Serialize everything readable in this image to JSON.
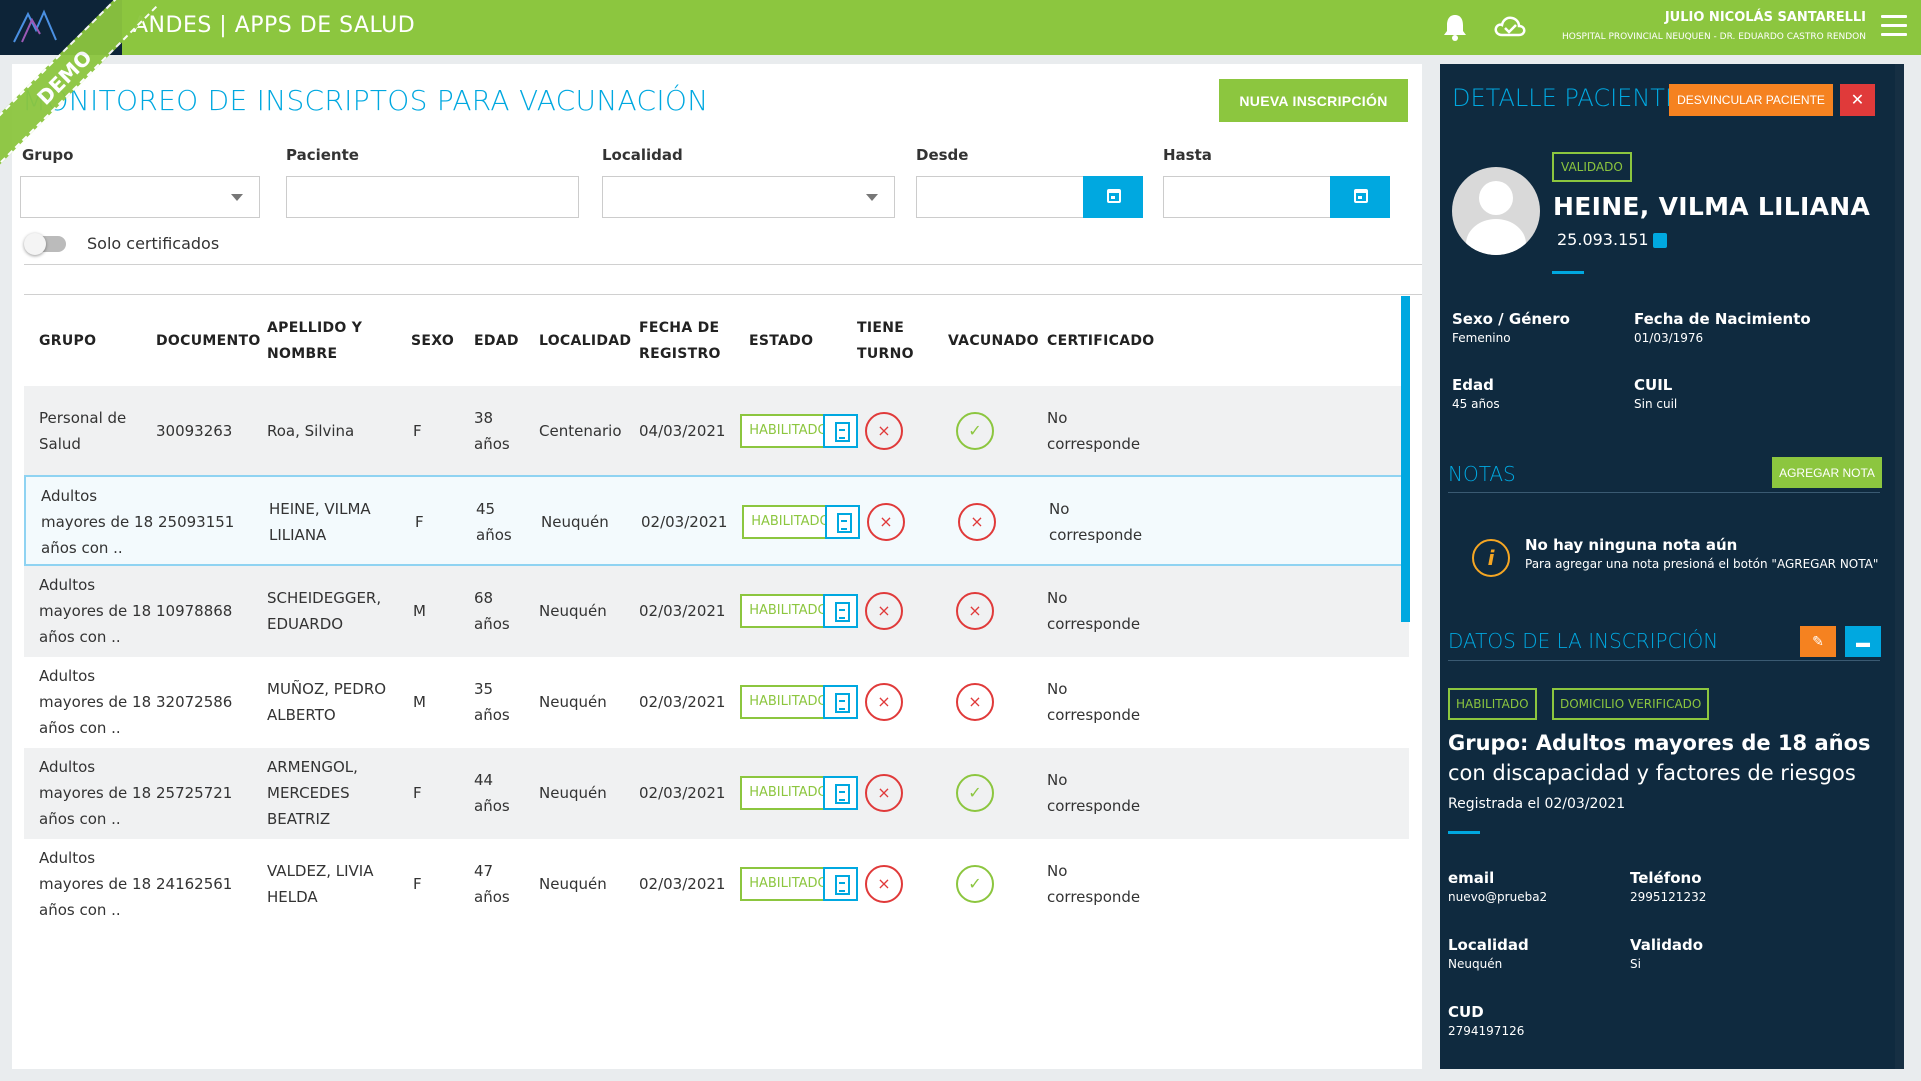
{
  "header": {
    "app_title": "ANDES | APPS DE SALUD",
    "user_name": "JULIO NICOLÁS SANTARELLI",
    "hospital": "HOSPITAL PROVINCIAL NEUQUEN - DR. EDUARDO CASTRO RENDON",
    "demo_label": "DEMO",
    "color_primary": "#8cc63f"
  },
  "main": {
    "title": "MONITOREO DE INSCRIPTOS PARA VACUNACIÓN",
    "new_button": "NUEVA INSCRIPCIÓN",
    "filters": {
      "grupo_label": "Grupo",
      "paciente_label": "Paciente",
      "localidad_label": "Localidad",
      "desde_label": "Desde",
      "hasta_label": "Hasta",
      "grupo_value": "",
      "paciente_value": "",
      "localidad_value": "",
      "desde_value": "",
      "hasta_value": ""
    },
    "toggle_label": "Solo certificados",
    "columns": {
      "grupo": "GRUPO",
      "documento": "DOCUMENTO",
      "apellido_1": "APELLIDO Y",
      "apellido_2": "NOMBRE",
      "sexo": "SEXO",
      "edad": "EDAD",
      "localidad": "LOCALIDAD",
      "fecha_1": "FECHA DE",
      "fecha_2": "REGISTRO",
      "estado": "ESTADO",
      "turno_1": "TIENE",
      "turno_2": "TURNO",
      "vacunado": "VACUNADO",
      "certificado": "CERTIFICADO"
    },
    "rows": [
      {
        "grupo": [
          "Personal de",
          "Salud"
        ],
        "documento": "30093263",
        "nombre": [
          "Roa, Silvina"
        ],
        "sexo": "F",
        "edad": [
          "38",
          "años"
        ],
        "localidad": "Centenario",
        "fecha": "04/03/2021",
        "estado": "HABILITADO",
        "turno": "×",
        "vacunado": "✓",
        "certificado": [
          "No",
          "corresponde"
        ]
      },
      {
        "grupo": [
          "Adultos",
          "mayores de 18",
          "años con .."
        ],
        "documento": "25093151",
        "nombre": [
          "HEINE, VILMA",
          "LILIANA"
        ],
        "sexo": "F",
        "edad": [
          "45",
          "años"
        ],
        "localidad": "Neuquén",
        "fecha": "02/03/2021",
        "estado": "HABILITADO",
        "turno": "×",
        "vacunado": "×",
        "certificado": [
          "No",
          "corresponde"
        ]
      },
      {
        "grupo": [
          "Adultos",
          "mayores de 18",
          "años con .."
        ],
        "documento": "10978868",
        "nombre": [
          "SCHEIDEGGER,",
          "EDUARDO"
        ],
        "sexo": "M",
        "edad": [
          "68",
          "años"
        ],
        "localidad": "Neuquén",
        "fecha": "02/03/2021",
        "estado": "HABILITADO",
        "turno": "×",
        "vacunado": "×",
        "certificado": [
          "No",
          "corresponde"
        ]
      },
      {
        "grupo": [
          "Adultos",
          "mayores de 18",
          "años con .."
        ],
        "documento": "32072586",
        "nombre": [
          "MUÑOZ, PEDRO",
          "ALBERTO"
        ],
        "sexo": "M",
        "edad": [
          "35",
          "años"
        ],
        "localidad": "Neuquén",
        "fecha": "02/03/2021",
        "estado": "HABILITADO",
        "turno": "×",
        "vacunado": "×",
        "certificado": [
          "No",
          "corresponde"
        ]
      },
      {
        "grupo": [
          "Adultos",
          "mayores de 18",
          "años con .."
        ],
        "documento": "25725721",
        "nombre": [
          "ARMENGOL,",
          "MERCEDES",
          "BEATRIZ"
        ],
        "sexo": "F",
        "edad": [
          "44",
          "años"
        ],
        "localidad": "Neuquén",
        "fecha": "02/03/2021",
        "estado": "HABILITADO",
        "turno": "×",
        "vacunado": "✓",
        "certificado": [
          "No",
          "corresponde"
        ]
      },
      {
        "grupo": [
          "Adultos",
          "mayores de 18",
          "años con .."
        ],
        "documento": "24162561",
        "nombre": [
          "VALDEZ, LIVIA",
          "HELDA"
        ],
        "sexo": "F",
        "edad": [
          "47",
          "años"
        ],
        "localidad": "Neuquén",
        "fecha": "02/03/2021",
        "estado": "HABILITADO",
        "turno": "×",
        "vacunado": "✓",
        "certificado": [
          "No",
          "corresponde"
        ]
      }
    ]
  },
  "detail": {
    "title": "DETALLE PACIENTE",
    "desvincular": "DESVINCULAR PACIENTE",
    "close": "✕",
    "validado": "VALIDADO",
    "name": "HEINE, VILMA LILIANA",
    "documento": "25.093.151",
    "sexo_label": "Sexo / Género",
    "sexo_value": "Femenino",
    "nac_label": "Fecha de Nacimiento",
    "nac_value": "01/03/1976",
    "edad_label": "Edad",
    "edad_value": "45 años",
    "cuil_label": "CUIL",
    "cuil_value": "Sin cuil",
    "notas_title": "NOTAS",
    "agregar_nota": "AGREGAR NOTA",
    "no_nota": "No hay ninguna nota aún",
    "no_nota_sub": "Para agregar una nota presioná el botón \"AGREGAR NOTA\"",
    "inscripcion_title": "DATOS DE LA INSCRIPCIÓN",
    "tag1": "HABILITADO",
    "tag2": "DOMICILIO VERIFICADO",
    "grupo_title": "Grupo: Adultos mayores de 18 años",
    "grupo_sub": "con discapacidad y factores de riesgos",
    "registrada": "Registrada el 02/03/2021",
    "email_label": "email",
    "email_value": "nuevo@prueba2",
    "tel_label": "Teléfono",
    "tel_value": "2995121232",
    "loc_label": "Localidad",
    "loc_value": "Neuquén",
    "val_label": "Validado",
    "val_value": "Si",
    "cud_label": "CUD",
    "cud_value": "2794197126"
  }
}
